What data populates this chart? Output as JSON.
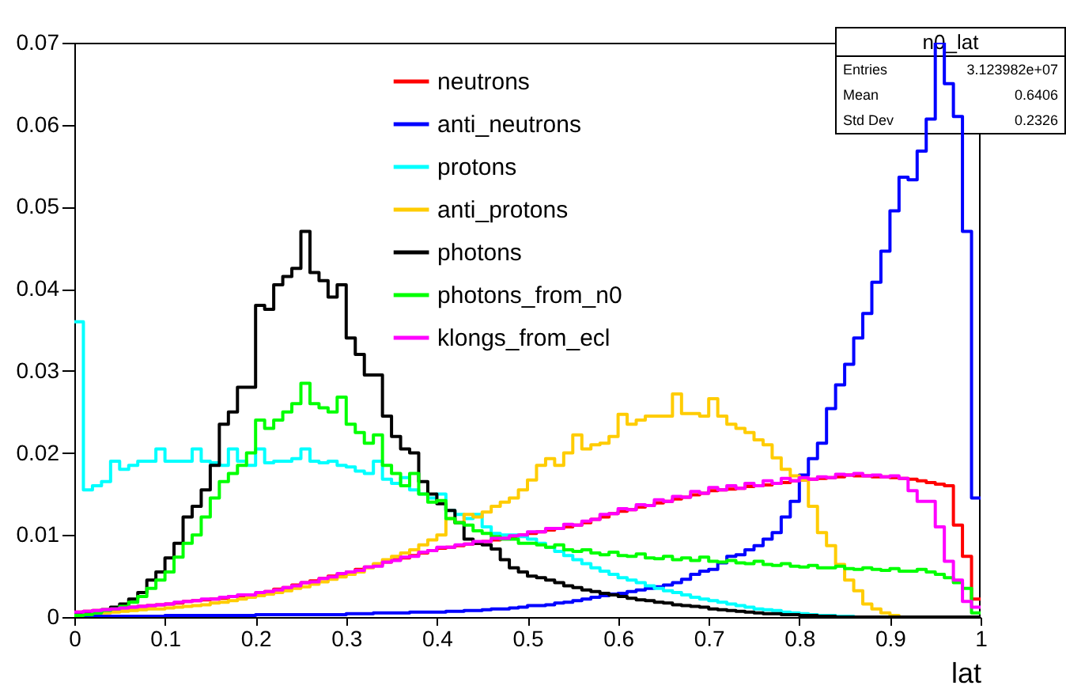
{
  "chart_data": {
    "type": "histogram",
    "bins": [
      0,
      0.01,
      0.02,
      0.03,
      0.04,
      0.05,
      0.06,
      0.07,
      0.08,
      0.09,
      0.1,
      0.11,
      0.12,
      0.13,
      0.14,
      0.15,
      0.16,
      0.17,
      0.18,
      0.19,
      0.2,
      0.21,
      0.22,
      0.23,
      0.24,
      0.25,
      0.26,
      0.27,
      0.28,
      0.29,
      0.3,
      0.31,
      0.32,
      0.33,
      0.34,
      0.35,
      0.36,
      0.37,
      0.38,
      0.39,
      0.4,
      0.41,
      0.42,
      0.43,
      0.44,
      0.45,
      0.46,
      0.47,
      0.48,
      0.49,
      0.5,
      0.51,
      0.52,
      0.53,
      0.54,
      0.55,
      0.56,
      0.57,
      0.58,
      0.59,
      0.6,
      0.61,
      0.62,
      0.63,
      0.64,
      0.65,
      0.66,
      0.67,
      0.68,
      0.69,
      0.7,
      0.71,
      0.72,
      0.73,
      0.74,
      0.75,
      0.76,
      0.77,
      0.78,
      0.79,
      0.8,
      0.81,
      0.82,
      0.83,
      0.84,
      0.85,
      0.86,
      0.87,
      0.88,
      0.89,
      0.9,
      0.91,
      0.92,
      0.93,
      0.94,
      0.95,
      0.96,
      0.97,
      0.98,
      0.99,
      1
    ],
    "series": [
      {
        "name": "neutrons",
        "color": "#ff0000",
        "values": [
          0.0006,
          0.0007,
          0.0008,
          0.0009,
          0.001,
          0.0011,
          0.0012,
          0.0013,
          0.0014,
          0.0015,
          0.0016,
          0.0017,
          0.0019,
          0.002,
          0.0021,
          0.0022,
          0.0023,
          0.0025,
          0.0026,
          0.0027,
          0.0029,
          0.0031,
          0.0034,
          0.0036,
          0.0039,
          0.0042,
          0.0044,
          0.0047,
          0.005,
          0.0052,
          0.0055,
          0.0058,
          0.0061,
          0.0064,
          0.0067,
          0.007,
          0.0072,
          0.0075,
          0.0078,
          0.0081,
          0.0084,
          0.0085,
          0.0087,
          0.0089,
          0.009,
          0.0092,
          0.0094,
          0.0096,
          0.0098,
          0.01,
          0.0102,
          0.0104,
          0.0106,
          0.0108,
          0.011,
          0.0112,
          0.0115,
          0.0119,
          0.0122,
          0.0126,
          0.0129,
          0.0131,
          0.0134,
          0.0136,
          0.0139,
          0.0141,
          0.0144,
          0.0146,
          0.0149,
          0.0151,
          0.0154,
          0.0155,
          0.0156,
          0.0157,
          0.0159,
          0.016,
          0.0161,
          0.0163,
          0.0164,
          0.0166,
          0.0167,
          0.0168,
          0.0169,
          0.017,
          0.0171,
          0.0173,
          0.0172,
          0.0172,
          0.0171,
          0.0171,
          0.017,
          0.0169,
          0.0168,
          0.0166,
          0.0164,
          0.0162,
          0.016,
          0.0112,
          0.0074,
          0.0022
        ]
      },
      {
        "name": "anti_neutrons",
        "color": "#0000ff",
        "values": [
          0.0001,
          0.0001,
          0.0001,
          0.0001,
          0.0001,
          0.0001,
          0.0001,
          0.0001,
          0.0001,
          0.0001,
          0.0002,
          0.0002,
          0.0002,
          0.0002,
          0.0002,
          0.0002,
          0.0002,
          0.0002,
          0.0002,
          0.0002,
          0.0003,
          0.0003,
          0.0003,
          0.0003,
          0.0003,
          0.0003,
          0.0003,
          0.0003,
          0.0003,
          0.0003,
          0.0004,
          0.0004,
          0.0004,
          0.0005,
          0.0005,
          0.0005,
          0.0005,
          0.0006,
          0.0006,
          0.0006,
          0.0006,
          0.0007,
          0.0007,
          0.0008,
          0.0008,
          0.0009,
          0.001,
          0.001,
          0.0011,
          0.0012,
          0.0014,
          0.0014,
          0.0015,
          0.0017,
          0.0018,
          0.002,
          0.0022,
          0.0024,
          0.0026,
          0.0028,
          0.0029,
          0.0031,
          0.0033,
          0.0035,
          0.0037,
          0.0039,
          0.0042,
          0.0046,
          0.0052,
          0.0056,
          0.0058,
          0.0066,
          0.0074,
          0.0076,
          0.0082,
          0.0087,
          0.0095,
          0.0103,
          0.0122,
          0.0141,
          0.0173,
          0.0193,
          0.0212,
          0.0254,
          0.0283,
          0.0308,
          0.034,
          0.037,
          0.0408,
          0.0446,
          0.0495,
          0.0536,
          0.0533,
          0.0568,
          0.0607,
          0.07,
          0.065,
          0.061,
          0.047,
          0.0145
        ]
      },
      {
        "name": "protons",
        "color": "#00ffff",
        "values": [
          0.036,
          0.0155,
          0.016,
          0.0165,
          0.019,
          0.018,
          0.0185,
          0.019,
          0.019,
          0.0205,
          0.019,
          0.019,
          0.019,
          0.0205,
          0.019,
          0.0188,
          0.0185,
          0.0205,
          0.019,
          0.0185,
          0.0205,
          0.0188,
          0.019,
          0.019,
          0.0193,
          0.0205,
          0.019,
          0.0188,
          0.019,
          0.0185,
          0.0183,
          0.0178,
          0.0175,
          0.019,
          0.0168,
          0.0163,
          0.017,
          0.0155,
          0.015,
          0.0145,
          0.015,
          0.013,
          0.0125,
          0.012,
          0.0125,
          0.011,
          0.0102,
          0.01,
          0.01,
          0.0098,
          0.0095,
          0.009,
          0.0085,
          0.008,
          0.0075,
          0.007,
          0.0065,
          0.006,
          0.0056,
          0.0052,
          0.0048,
          0.0045,
          0.0042,
          0.0038,
          0.0035,
          0.0032,
          0.003,
          0.0027,
          0.0024,
          0.0022,
          0.002,
          0.0018,
          0.0016,
          0.0014,
          0.0012,
          0.001,
          0.0009,
          0.0008,
          0.0006,
          0.0005,
          0.0004,
          0.0003,
          0.0002,
          0.0002,
          0.0001,
          0.0001,
          0,
          0,
          0,
          0,
          0,
          0,
          0,
          0,
          0,
          0,
          0,
          0,
          0,
          0
        ]
      },
      {
        "name": "anti_protons",
        "color": "#ffcc00",
        "values": [
          0.0003,
          0.0004,
          0.0005,
          0.0005,
          0.0006,
          0.0007,
          0.0008,
          0.0009,
          0.001,
          0.001,
          0.0011,
          0.0012,
          0.0013,
          0.0014,
          0.0015,
          0.0017,
          0.0018,
          0.002,
          0.0022,
          0.0024,
          0.0026,
          0.0028,
          0.003,
          0.0032,
          0.0035,
          0.0037,
          0.004,
          0.0043,
          0.0046,
          0.0049,
          0.0052,
          0.0055,
          0.006,
          0.0065,
          0.007,
          0.0074,
          0.0078,
          0.0082,
          0.0088,
          0.0094,
          0.01,
          0.012,
          0.0115,
          0.0125,
          0.0122,
          0.0128,
          0.0135,
          0.014,
          0.0145,
          0.0155,
          0.0167,
          0.0185,
          0.0193,
          0.0185,
          0.02,
          0.0222,
          0.0205,
          0.021,
          0.0212,
          0.022,
          0.0247,
          0.0235,
          0.024,
          0.0245,
          0.0245,
          0.0245,
          0.0272,
          0.0248,
          0.0248,
          0.0245,
          0.0266,
          0.0245,
          0.0235,
          0.023,
          0.0225,
          0.0216,
          0.021,
          0.0194,
          0.018,
          0.0172,
          0.0167,
          0.0135,
          0.0103,
          0.0087,
          0.0064,
          0.0045,
          0.0032,
          0.0016,
          0.001,
          0.0005,
          0.0002,
          0,
          0,
          0,
          0,
          0,
          0,
          0,
          0,
          0
        ]
      },
      {
        "name": "photons",
        "color": "#000000",
        "values": [
          0.0003,
          0.0004,
          0.0006,
          0.0009,
          0.0012,
          0.0016,
          0.0022,
          0.003,
          0.0045,
          0.0055,
          0.0072,
          0.009,
          0.0122,
          0.0135,
          0.0155,
          0.0185,
          0.0235,
          0.025,
          0.028,
          0.028,
          0.038,
          0.0375,
          0.0405,
          0.0415,
          0.0425,
          0.047,
          0.042,
          0.041,
          0.039,
          0.0405,
          0.034,
          0.032,
          0.0295,
          0.0295,
          0.0245,
          0.022,
          0.0205,
          0.02,
          0.0165,
          0.015,
          0.0138,
          0.013,
          0.0115,
          0.0095,
          0.009,
          0.0088,
          0.0083,
          0.007,
          0.006,
          0.0055,
          0.005,
          0.0048,
          0.0045,
          0.0042,
          0.0038,
          0.0036,
          0.0033,
          0.0031,
          0.0029,
          0.0027,
          0.0025,
          0.0023,
          0.0021,
          0.002,
          0.0018,
          0.0017,
          0.0015,
          0.0014,
          0.0013,
          0.0012,
          0.001,
          0.0009,
          0.0008,
          0.0007,
          0.0006,
          0.0005,
          0.0004,
          0.0004,
          0.0003,
          0.0003,
          0.0002,
          0.0002,
          0.0001,
          0.0001,
          0,
          0,
          0,
          0,
          0,
          0,
          0,
          0,
          0,
          0,
          0,
          0,
          0,
          0,
          0,
          0
        ]
      },
      {
        "name": "photons_from_n0",
        "color": "#00ff00",
        "values": [
          0.0002,
          0.0003,
          0.0005,
          0.0008,
          0.001,
          0.0013,
          0.0018,
          0.0025,
          0.0035,
          0.0045,
          0.0055,
          0.0073,
          0.009,
          0.01,
          0.0122,
          0.0145,
          0.0165,
          0.0175,
          0.0185,
          0.02,
          0.024,
          0.023,
          0.024,
          0.025,
          0.026,
          0.0285,
          0.026,
          0.0255,
          0.025,
          0.0268,
          0.0235,
          0.0225,
          0.0212,
          0.0222,
          0.0185,
          0.0175,
          0.016,
          0.0175,
          0.015,
          0.014,
          0.0142,
          0.012,
          0.0115,
          0.0112,
          0.0105,
          0.0102,
          0.0098,
          0.0095,
          0.0095,
          0.009,
          0.009,
          0.0088,
          0.0085,
          0.0088,
          0.0082,
          0.008,
          0.0082,
          0.0078,
          0.0076,
          0.0079,
          0.0075,
          0.0074,
          0.0077,
          0.0072,
          0.0071,
          0.0074,
          0.007,
          0.0072,
          0.0069,
          0.0073,
          0.0068,
          0.0067,
          0.0069,
          0.0066,
          0.0065,
          0.0068,
          0.0064,
          0.0063,
          0.0065,
          0.0062,
          0.0061,
          0.0063,
          0.006,
          0.006,
          0.0062,
          0.0059,
          0.0058,
          0.006,
          0.0058,
          0.0057,
          0.0059,
          0.0056,
          0.0056,
          0.0058,
          0.0055,
          0.0052,
          0.0048,
          0.0042,
          0.0035,
          0.0005
        ]
      },
      {
        "name": "klongs_from_ecl",
        "color": "#ff00ff",
        "values": [
          0.0006,
          0.0007,
          0.0008,
          0.0009,
          0.001,
          0.0011,
          0.0012,
          0.0013,
          0.0014,
          0.0015,
          0.0016,
          0.0018,
          0.0019,
          0.002,
          0.0022,
          0.0022,
          0.0024,
          0.0025,
          0.0027,
          0.0027,
          0.003,
          0.0031,
          0.0033,
          0.0036,
          0.0038,
          0.0042,
          0.0043,
          0.0047,
          0.0049,
          0.0053,
          0.0055,
          0.0057,
          0.0061,
          0.0062,
          0.0067,
          0.0069,
          0.0073,
          0.0074,
          0.0079,
          0.0081,
          0.0085,
          0.0085,
          0.0088,
          0.0089,
          0.0092,
          0.0092,
          0.0096,
          0.0096,
          0.0099,
          0.01,
          0.0104,
          0.0104,
          0.0108,
          0.0108,
          0.0113,
          0.0112,
          0.0117,
          0.0119,
          0.0125,
          0.0126,
          0.0132,
          0.0131,
          0.0137,
          0.0136,
          0.0143,
          0.0141,
          0.0147,
          0.0146,
          0.0153,
          0.0151,
          0.0158,
          0.0155,
          0.016,
          0.0157,
          0.0163,
          0.016,
          0.0166,
          0.0163,
          0.0169,
          0.0166,
          0.017,
          0.0168,
          0.0171,
          0.017,
          0.0174,
          0.0173,
          0.0175,
          0.0172,
          0.0173,
          0.0171,
          0.0172,
          0.0169,
          0.0154,
          0.0141,
          0.0141,
          0.011,
          0.0068,
          0.0045,
          0.0019,
          0.0012
        ]
      }
    ],
    "xlabel": "lat",
    "xlim": [
      0,
      1
    ],
    "xticks": [
      0,
      0.1,
      0.2,
      0.3,
      0.4,
      0.5,
      0.6,
      0.7,
      0.8,
      0.9,
      1
    ],
    "ylim": [
      0,
      0.07
    ],
    "yticks": [
      {
        "value": 0,
        "label": "0"
      },
      0.01,
      0.02,
      0.03,
      0.04,
      0.05,
      0.06,
      0.07
    ],
    "legend": "top",
    "annotations": [
      "n0_lat",
      "Entries",
      "3.123982e+07",
      "Mean",
      "0.6406",
      "Std Dev",
      "0.2326"
    ]
  }
}
